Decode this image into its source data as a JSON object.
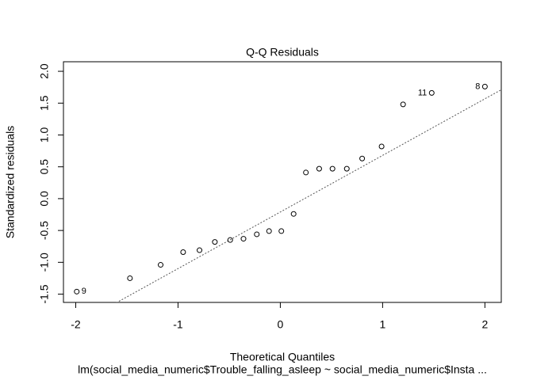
{
  "chart_data": {
    "type": "scatter",
    "title": "Q-Q Residuals",
    "x_label": "Theoretical Quantiles",
    "y_label": "Standardized residuals",
    "subtitle": "lm(social_media_numeric$Trouble_falling_asleep ~ social_media_numeric$Insta ...",
    "x": [
      -1.99,
      -1.47,
      -1.17,
      -0.95,
      -0.79,
      -0.64,
      -0.49,
      -0.36,
      -0.23,
      -0.11,
      0.01,
      0.13,
      0.25,
      0.38,
      0.51,
      0.65,
      0.8,
      0.99,
      1.2,
      1.48,
      2.0
    ],
    "values": [
      -1.46,
      -1.25,
      -1.04,
      -0.84,
      -0.81,
      -0.68,
      -0.65,
      -0.63,
      -0.56,
      -0.51,
      -0.51,
      -0.24,
      0.41,
      0.47,
      0.47,
      0.47,
      0.63,
      0.82,
      1.48,
      1.66,
      1.76
    ],
    "point_labels": [
      "9",
      null,
      null,
      null,
      null,
      null,
      null,
      null,
      null,
      null,
      null,
      null,
      null,
      null,
      null,
      null,
      null,
      null,
      null,
      "11",
      "8"
    ],
    "qq_line": {
      "intercept": -0.21,
      "slope": 0.889
    },
    "xlim": [
      -2.12,
      2.16
    ],
    "ylim": [
      -1.63,
      2.15
    ],
    "xticks": [
      -2,
      -1,
      0,
      1,
      2
    ],
    "yticks": [
      {
        "value": -1.5,
        "label": "-1.5"
      },
      {
        "value": -1,
        "label": "-1.0"
      },
      {
        "value": -0.5,
        "label": "-0.5"
      },
      {
        "value": 0,
        "label": "0.0"
      },
      {
        "value": 0.5,
        "label": "0.5"
      },
      {
        "value": 1,
        "label": "1.0"
      },
      {
        "value": 1.5,
        "label": "1.5"
      },
      {
        "value": 2,
        "label": "2.0"
      }
    ],
    "color": "#000000"
  }
}
